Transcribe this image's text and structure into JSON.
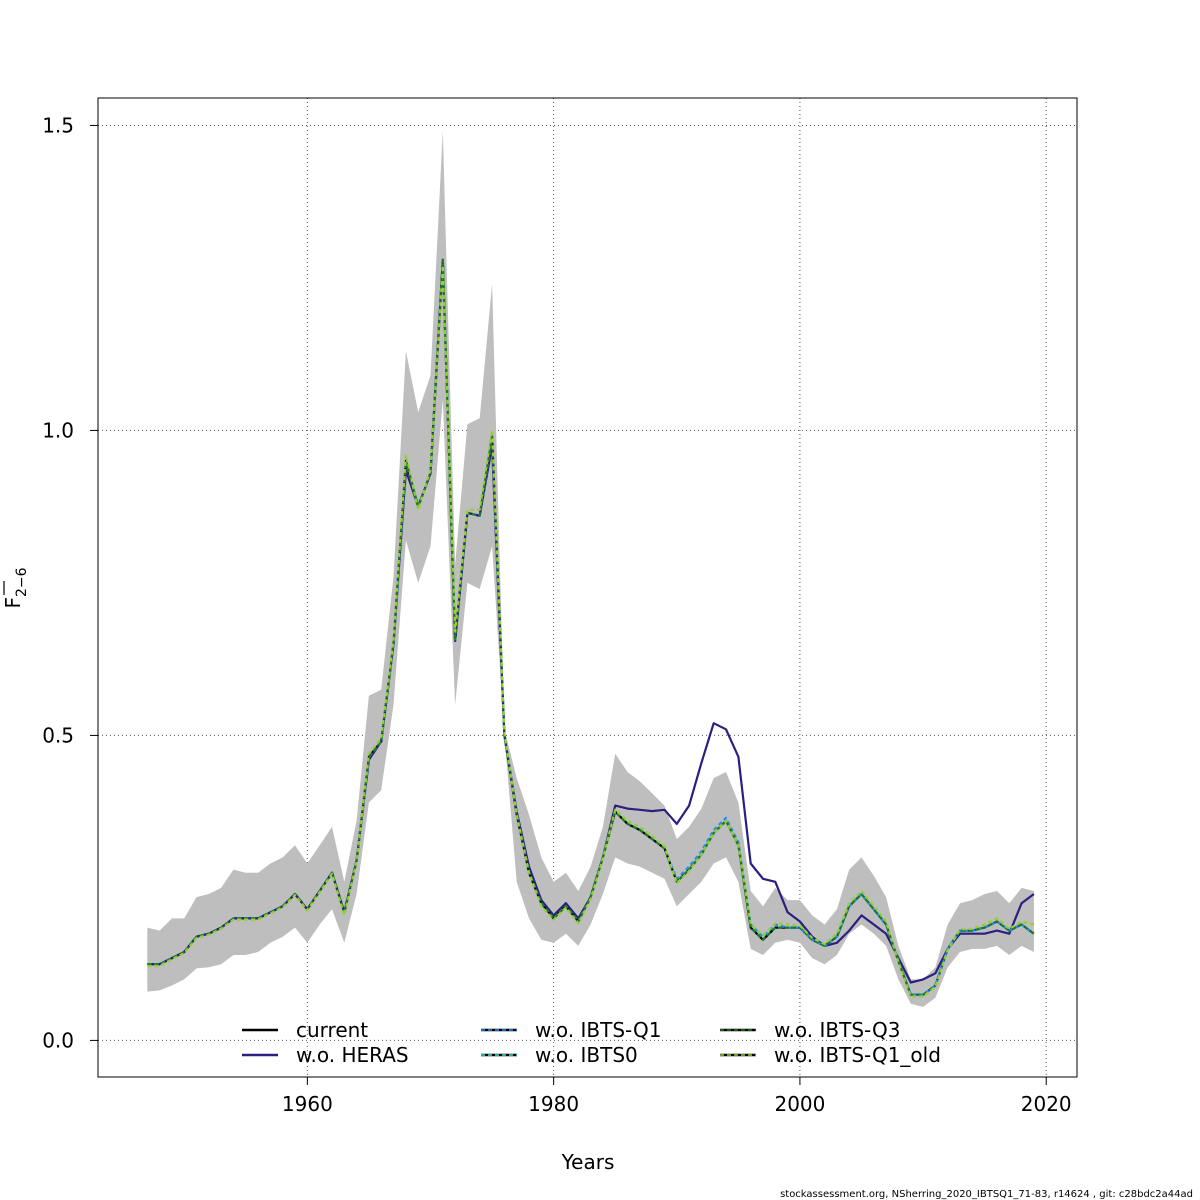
{
  "chart_data": {
    "type": "line",
    "xlabel": "Years",
    "ylabel_main": "F",
    "ylabel_sub": "2−6",
    "xlim": [
      1943,
      2022.5
    ],
    "ylim": [
      -0.06,
      1.545
    ],
    "x_ticks": [
      1960,
      1980,
      2000,
      2020
    ],
    "y_ticks": [
      0.0,
      0.5,
      1.0,
      1.5
    ],
    "x_tick_labels": [
      "1960",
      "1980",
      "2000",
      "2020"
    ],
    "y_tick_labels": [
      "0.0",
      "0.5",
      "1.0",
      "1.5"
    ],
    "grid": true,
    "legend_position": "bottom",
    "x": [
      1947,
      1948,
      1949,
      1950,
      1951,
      1952,
      1953,
      1954,
      1955,
      1956,
      1957,
      1958,
      1959,
      1960,
      1961,
      1962,
      1963,
      1964,
      1965,
      1966,
      1967,
      1968,
      1969,
      1970,
      1971,
      1972,
      1973,
      1974,
      1975,
      1976,
      1977,
      1978,
      1979,
      1980,
      1981,
      1982,
      1983,
      1984,
      1985,
      1986,
      1987,
      1988,
      1989,
      1990,
      1991,
      1992,
      1993,
      1994,
      1995,
      1996,
      1997,
      1998,
      1999,
      2000,
      2001,
      2002,
      2003,
      2004,
      2005,
      2006,
      2007,
      2008,
      2009,
      2010,
      2011,
      2012,
      2013,
      2014,
      2015,
      2016,
      2017,
      2018,
      2019
    ],
    "band": {
      "color": "#bebebe",
      "lower": [
        0.08,
        0.082,
        0.09,
        0.1,
        0.118,
        0.12,
        0.125,
        0.14,
        0.14,
        0.145,
        0.16,
        0.17,
        0.185,
        0.16,
        0.19,
        0.215,
        0.16,
        0.24,
        0.39,
        0.41,
        0.55,
        0.82,
        0.75,
        0.81,
        1.05,
        0.55,
        0.75,
        0.74,
        0.81,
        0.5,
        0.26,
        0.2,
        0.165,
        0.16,
        0.175,
        0.155,
        0.19,
        0.24,
        0.3,
        0.29,
        0.285,
        0.275,
        0.265,
        0.22,
        0.24,
        0.26,
        0.29,
        0.3,
        0.26,
        0.15,
        0.14,
        0.16,
        0.165,
        0.16,
        0.135,
        0.125,
        0.14,
        0.175,
        0.19,
        0.175,
        0.155,
        0.1,
        0.06,
        0.055,
        0.07,
        0.12,
        0.145,
        0.15,
        0.15,
        0.155,
        0.14,
        0.155,
        0.145
      ],
      "upper": [
        0.185,
        0.18,
        0.2,
        0.2,
        0.235,
        0.24,
        0.25,
        0.28,
        0.275,
        0.275,
        0.29,
        0.3,
        0.32,
        0.29,
        0.32,
        0.35,
        0.26,
        0.36,
        0.565,
        0.575,
        0.76,
        1.13,
        1.03,
        1.09,
        1.49,
        0.78,
        1.01,
        1.02,
        1.24,
        0.51,
        0.43,
        0.37,
        0.3,
        0.26,
        0.275,
        0.245,
        0.285,
        0.35,
        0.47,
        0.44,
        0.425,
        0.405,
        0.385,
        0.33,
        0.35,
        0.38,
        0.43,
        0.44,
        0.39,
        0.245,
        0.22,
        0.25,
        0.23,
        0.23,
        0.205,
        0.19,
        0.215,
        0.28,
        0.3,
        0.27,
        0.235,
        0.155,
        0.1,
        0.1,
        0.12,
        0.19,
        0.225,
        0.23,
        0.24,
        0.245,
        0.225,
        0.25,
        0.245
      ]
    },
    "series": [
      {
        "name": "current",
        "color": "#000000",
        "dash": "",
        "values": [
          0.125,
          0.125,
          0.135,
          0.145,
          0.17,
          0.175,
          0.185,
          0.2,
          0.2,
          0.2,
          0.21,
          0.22,
          0.24,
          0.215,
          0.245,
          0.275,
          0.21,
          0.295,
          0.465,
          0.49,
          0.65,
          0.95,
          0.875,
          0.93,
          1.28,
          0.655,
          0.865,
          0.86,
          0.99,
          0.5,
          0.37,
          0.275,
          0.225,
          0.2,
          0.22,
          0.195,
          0.235,
          0.3,
          0.375,
          0.355,
          0.345,
          0.33,
          0.315,
          0.26,
          0.28,
          0.305,
          0.34,
          0.36,
          0.32,
          0.185,
          0.165,
          0.185,
          0.185,
          0.185,
          0.165,
          0.155,
          0.17,
          0.22,
          0.24,
          0.215,
          0.19,
          0.13,
          0.075,
          0.075,
          0.09,
          0.15,
          0.18,
          0.18,
          0.185,
          0.195,
          0.18,
          0.19,
          0.175
        ]
      },
      {
        "name": "w.o. HERAS",
        "color": "#2b1f80",
        "dash": "",
        "values": [
          0.125,
          0.125,
          0.135,
          0.145,
          0.17,
          0.175,
          0.185,
          0.2,
          0.2,
          0.2,
          0.21,
          0.22,
          0.24,
          0.215,
          0.245,
          0.275,
          0.21,
          0.295,
          0.46,
          0.49,
          0.65,
          0.935,
          0.875,
          0.93,
          1.275,
          0.655,
          0.865,
          0.86,
          0.975,
          0.5,
          0.375,
          0.285,
          0.23,
          0.205,
          0.225,
          0.2,
          0.235,
          0.3,
          0.385,
          0.38,
          0.378,
          0.376,
          0.378,
          0.355,
          0.385,
          0.455,
          0.52,
          0.51,
          0.465,
          0.29,
          0.265,
          0.26,
          0.21,
          0.195,
          0.17,
          0.155,
          0.16,
          0.18,
          0.205,
          0.19,
          0.175,
          0.135,
          0.095,
          0.1,
          0.11,
          0.15,
          0.175,
          0.175,
          0.175,
          0.18,
          0.175,
          0.225,
          0.24
        ]
      },
      {
        "name": "w.o. IBTS-Q1",
        "color": "#1e90ff",
        "dash": "4,3",
        "values": [
          0.125,
          0.125,
          0.135,
          0.145,
          0.17,
          0.175,
          0.185,
          0.2,
          0.2,
          0.2,
          0.21,
          0.22,
          0.24,
          0.215,
          0.245,
          0.275,
          0.21,
          0.295,
          0.465,
          0.49,
          0.65,
          0.95,
          0.875,
          0.93,
          1.28,
          0.655,
          0.865,
          0.86,
          0.99,
          0.5,
          0.37,
          0.275,
          0.225,
          0.2,
          0.22,
          0.195,
          0.235,
          0.3,
          0.375,
          0.355,
          0.345,
          0.33,
          0.315,
          0.265,
          0.285,
          0.31,
          0.345,
          0.365,
          0.325,
          0.19,
          0.17,
          0.19,
          0.185,
          0.185,
          0.165,
          0.155,
          0.17,
          0.22,
          0.24,
          0.215,
          0.19,
          0.13,
          0.075,
          0.075,
          0.09,
          0.15,
          0.18,
          0.18,
          0.185,
          0.195,
          0.18,
          0.19,
          0.175
        ]
      },
      {
        "name": "w.o. IBTS0",
        "color": "#40e0d0",
        "dash": "4,3",
        "values": [
          0.125,
          0.125,
          0.135,
          0.145,
          0.17,
          0.175,
          0.185,
          0.2,
          0.2,
          0.2,
          0.21,
          0.22,
          0.24,
          0.215,
          0.245,
          0.275,
          0.21,
          0.295,
          0.465,
          0.49,
          0.65,
          0.95,
          0.875,
          0.93,
          1.28,
          0.655,
          0.865,
          0.86,
          0.99,
          0.5,
          0.37,
          0.275,
          0.225,
          0.2,
          0.22,
          0.195,
          0.235,
          0.3,
          0.375,
          0.355,
          0.345,
          0.33,
          0.315,
          0.26,
          0.28,
          0.305,
          0.34,
          0.36,
          0.32,
          0.185,
          0.165,
          0.185,
          0.185,
          0.185,
          0.165,
          0.155,
          0.17,
          0.22,
          0.24,
          0.215,
          0.19,
          0.13,
          0.075,
          0.075,
          0.09,
          0.15,
          0.18,
          0.18,
          0.185,
          0.195,
          0.18,
          0.19,
          0.175
        ]
      },
      {
        "name": "w.o. IBTS-Q3",
        "color": "#1f7a1f",
        "dash": "4,3",
        "values": [
          0.125,
          0.125,
          0.135,
          0.145,
          0.17,
          0.175,
          0.185,
          0.2,
          0.2,
          0.2,
          0.21,
          0.22,
          0.24,
          0.215,
          0.245,
          0.275,
          0.21,
          0.295,
          0.465,
          0.49,
          0.65,
          0.95,
          0.875,
          0.93,
          1.28,
          0.655,
          0.865,
          0.86,
          0.99,
          0.5,
          0.37,
          0.275,
          0.225,
          0.2,
          0.22,
          0.195,
          0.235,
          0.3,
          0.375,
          0.355,
          0.345,
          0.33,
          0.315,
          0.26,
          0.28,
          0.305,
          0.34,
          0.36,
          0.32,
          0.185,
          0.165,
          0.185,
          0.185,
          0.185,
          0.165,
          0.155,
          0.17,
          0.22,
          0.24,
          0.215,
          0.19,
          0.13,
          0.075,
          0.075,
          0.09,
          0.15,
          0.18,
          0.18,
          0.185,
          0.195,
          0.18,
          0.19,
          0.175
        ]
      },
      {
        "name": "w.o. IBTS-Q1_old",
        "color": "#9acd32",
        "dash": "4,3",
        "values": [
          0.122,
          0.122,
          0.133,
          0.143,
          0.168,
          0.173,
          0.183,
          0.198,
          0.198,
          0.198,
          0.208,
          0.218,
          0.238,
          0.213,
          0.243,
          0.273,
          0.205,
          0.293,
          0.47,
          0.495,
          0.655,
          0.96,
          0.87,
          0.935,
          1.27,
          0.67,
          0.87,
          0.87,
          1.0,
          0.505,
          0.37,
          0.275,
          0.22,
          0.198,
          0.218,
          0.192,
          0.232,
          0.298,
          0.378,
          0.36,
          0.35,
          0.335,
          0.318,
          0.258,
          0.278,
          0.305,
          0.34,
          0.36,
          0.32,
          0.19,
          0.172,
          0.192,
          0.19,
          0.188,
          0.168,
          0.158,
          0.175,
          0.225,
          0.245,
          0.22,
          0.195,
          0.128,
          0.072,
          0.072,
          0.088,
          0.148,
          0.182,
          0.183,
          0.19,
          0.2,
          0.183,
          0.195,
          0.19
        ]
      }
    ]
  },
  "footer_text": "stockassessment.org, NSherring_2020_IBTSQ1_71-83, r14624 , git: c28bdc2a44ad"
}
